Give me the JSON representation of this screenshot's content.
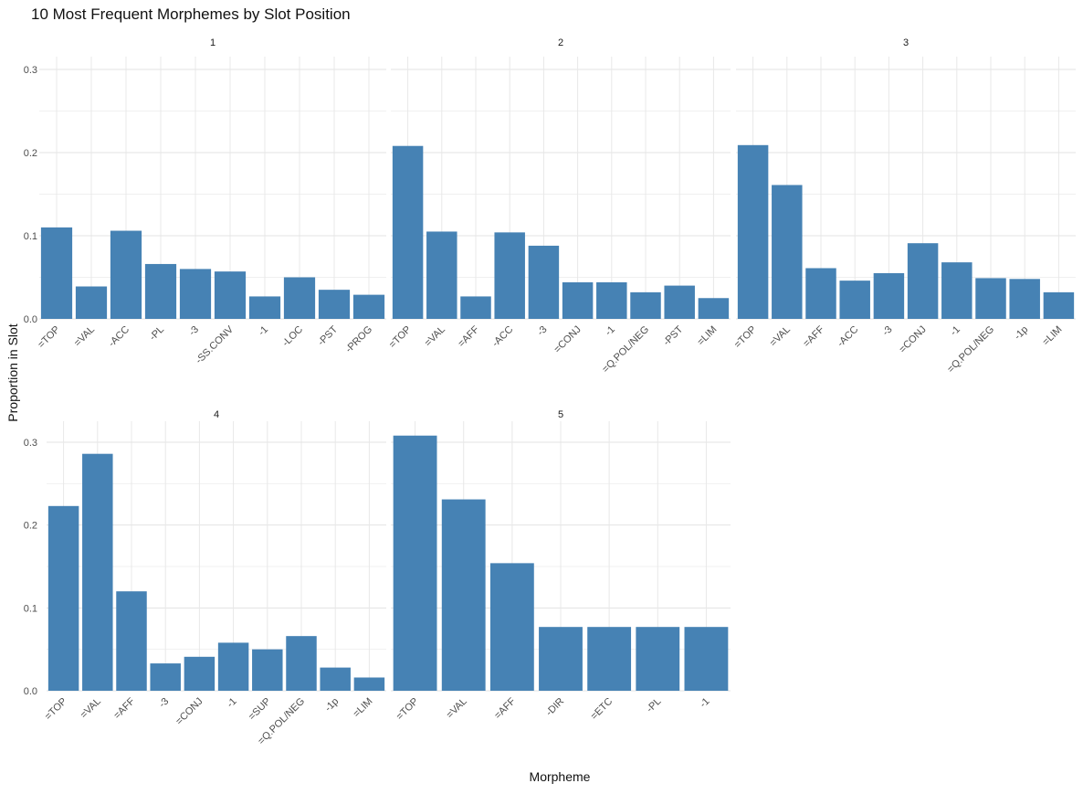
{
  "chart_data": {
    "type": "bar",
    "title": "10 Most Frequent Morphemes by Slot Position",
    "xlabel": "Morpheme",
    "ylabel": "Proportion in Slot",
    "ylim": [
      0,
      0.32
    ],
    "yticks": [
      "0.0",
      "0.1",
      "0.2",
      "0.3"
    ],
    "ytick_values": [
      0,
      0.1,
      0.2,
      0.3
    ],
    "grid": true,
    "bar_color": "#4682B4",
    "facets": [
      {
        "label": "1",
        "categories": [
          "=TOP",
          "=VAL",
          "-ACC",
          "-PL",
          "-3",
          "-SS.CONV",
          "-1",
          "-LOC",
          "-PST",
          "-PROG"
        ],
        "values": [
          0.11,
          0.039,
          0.106,
          0.066,
          0.06,
          0.057,
          0.027,
          0.05,
          0.035,
          0.029
        ]
      },
      {
        "label": "2",
        "categories": [
          "=TOP",
          "=VAL",
          "=AFF",
          "-ACC",
          "-3",
          "=CONJ",
          "-1",
          "=Q.POL/NEG",
          "-PST",
          "=LIM"
        ],
        "values": [
          0.208,
          0.105,
          0.027,
          0.104,
          0.088,
          0.044,
          0.044,
          0.032,
          0.04,
          0.025
        ]
      },
      {
        "label": "3",
        "categories": [
          "=TOP",
          "=VAL",
          "=AFF",
          "-ACC",
          "-3",
          "=CONJ",
          "-1",
          "=Q.POL/NEG",
          "-1p",
          "=LIM"
        ],
        "values": [
          0.209,
          0.161,
          0.061,
          0.046,
          0.055,
          0.091,
          0.068,
          0.049,
          0.048,
          0.032
        ]
      },
      {
        "label": "4",
        "categories": [
          "=TOP",
          "=VAL",
          "=AFF",
          "-3",
          "=CONJ",
          "-1",
          "=SUP",
          "=Q.POL/NEG",
          "-1p",
          "=LIM"
        ],
        "values": [
          0.223,
          0.286,
          0.12,
          0.033,
          0.041,
          0.058,
          0.05,
          0.066,
          0.028,
          0.016
        ]
      },
      {
        "label": "5",
        "categories": [
          "=TOP",
          "=VAL",
          "=AFF",
          "-DIR",
          "=ETC",
          "-PL",
          "-1"
        ],
        "values": [
          0.308,
          0.231,
          0.154,
          0.077,
          0.077,
          0.077,
          0.077
        ]
      }
    ]
  }
}
